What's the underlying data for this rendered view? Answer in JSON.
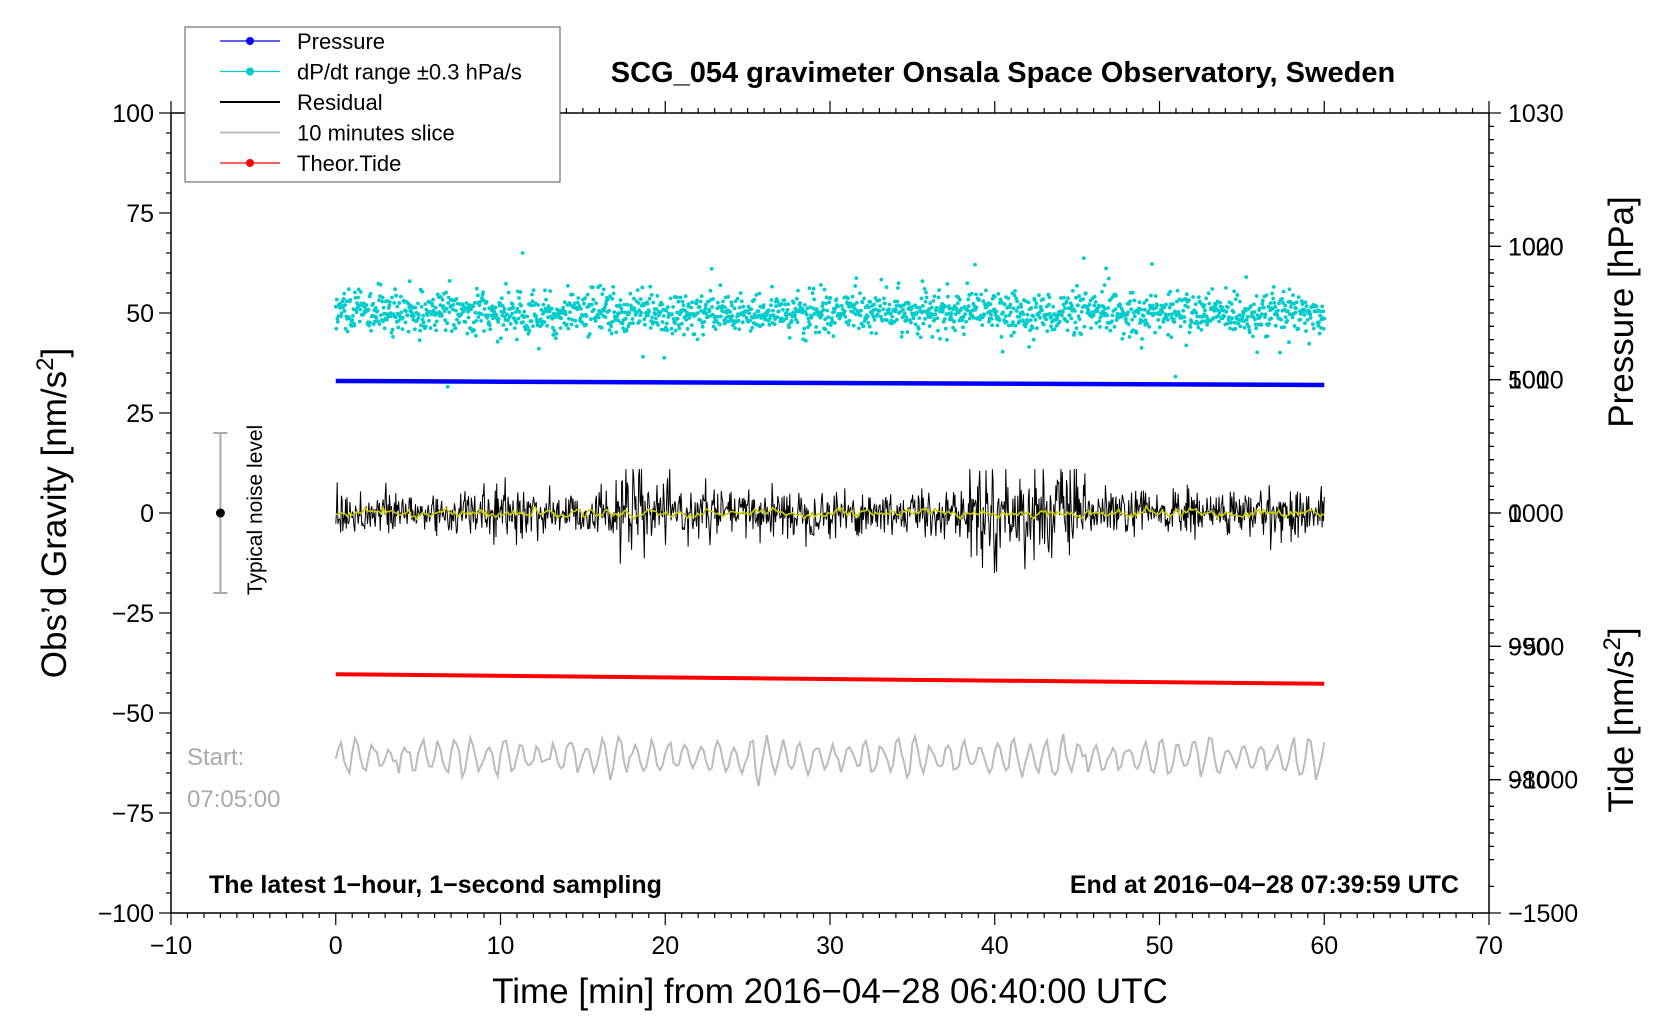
{
  "chart_data": {
    "type": "line",
    "title": "SCG_054 gravimeter Onsala Space Observatory, Sweden",
    "xlabel": "Time [min] from 2016−04−28 06:40:00 UTC",
    "ylabel_left": "Obs’d Gravity [nm/s²]",
    "ylabel_left_main": "Obs’d Gravity [nm/s",
    "ylabel_left_sup": "2",
    "ylabel_left_close": "]",
    "ylabel_right_pressure": "Pressure [hPa]",
    "ylabel_right_tide": "Tide [nm/s²]",
    "ylabel_right_tide_main": "Tide [nm/s",
    "ylabel_right_tide_sup": "2",
    "ylabel_right_tide_close": "]",
    "xlim": [
      -10,
      70
    ],
    "ylim_left": [
      -100,
      100
    ],
    "pressure_axis": {
      "range": [
        970,
        1030
      ],
      "ticks": [
        980,
        990,
        1000,
        1010,
        1020,
        1030
      ]
    },
    "tide_axis": {
      "range": [
        -1500,
        1500
      ],
      "ticks": [
        -1500,
        -1000,
        -500,
        0,
        500,
        1000
      ]
    },
    "xticks": [
      -10,
      0,
      10,
      20,
      30,
      40,
      50,
      60,
      70
    ],
    "xtick_labels": [
      "−10",
      "0",
      "10",
      "20",
      "30",
      "40",
      "50",
      "60",
      "70"
    ],
    "yticks_left": [
      -100,
      -75,
      -50,
      -25,
      0,
      25,
      50,
      75,
      100
    ],
    "ytick_left_labels": [
      "−100",
      "−75",
      "−50",
      "−25",
      "0",
      "25",
      "50",
      "75",
      "100"
    ],
    "ytick_tide_labels": [
      "−1500",
      "−1000",
      "−500",
      "0",
      "500",
      "1000"
    ],
    "grid": false,
    "legend_position": "top-left",
    "legend": [
      {
        "label": "Pressure",
        "color": "#0000ff",
        "marker": true
      },
      {
        "label": "dP/dt range ±0.3 hPa/s",
        "color": "#00cccc",
        "marker": true
      },
      {
        "label": "Residual",
        "color": "#000000",
        "marker": false
      },
      {
        "label": "10 minutes slice",
        "color": "#bbbbbb",
        "marker": false
      },
      {
        "label": "Theor.Tide",
        "color": "#ff0000",
        "marker": true
      }
    ],
    "series": [
      {
        "name": "Pressure",
        "axis": "pressure",
        "color": "#0000ff",
        "x_range": [
          0,
          60
        ],
        "start": 1009.9,
        "end": 1009.6
      },
      {
        "name": "dP/dt range ±0.3 hPa/s",
        "axis": "left",
        "color": "#00cccc",
        "x_range": [
          0,
          60
        ],
        "center": 50,
        "spread_typical": 2.5,
        "min": 28,
        "max": 65
      },
      {
        "name": "Residual",
        "axis": "left",
        "color": "#000000",
        "x_range": [
          0,
          60
        ],
        "center": 0,
        "spread_typical": 3,
        "min": -15,
        "max": 11
      },
      {
        "name": "Residual smoothed",
        "axis": "left",
        "color": "#cccc00",
        "x_range": [
          0,
          60
        ],
        "center": 0,
        "spread_typical": 0.6
      },
      {
        "name": "Theor.Tide",
        "axis": "left",
        "color": "#ff0000",
        "x_range": [
          0,
          60
        ],
        "start": -40.3,
        "end": -42.7
      },
      {
        "name": "10 minutes slice",
        "axis": "left",
        "color": "#bbbbbb",
        "x_range": [
          0,
          60
        ],
        "center": -61,
        "spread_typical": 3,
        "min": -70,
        "max": -54
      }
    ],
    "noise_bar": {
      "x": -7,
      "center": 0,
      "low": -20,
      "high": 20,
      "label": "Typical noise level"
    },
    "annotations": {
      "start_label": "Start:",
      "start_time": "07:05:00",
      "bottom_left": "The latest 1−hour, 1−second sampling",
      "bottom_right": "End at 2016−04−28 07:39:59 UTC"
    },
    "colors": {
      "text_gray": "#aaaaaa",
      "frame": "#000000"
    }
  }
}
